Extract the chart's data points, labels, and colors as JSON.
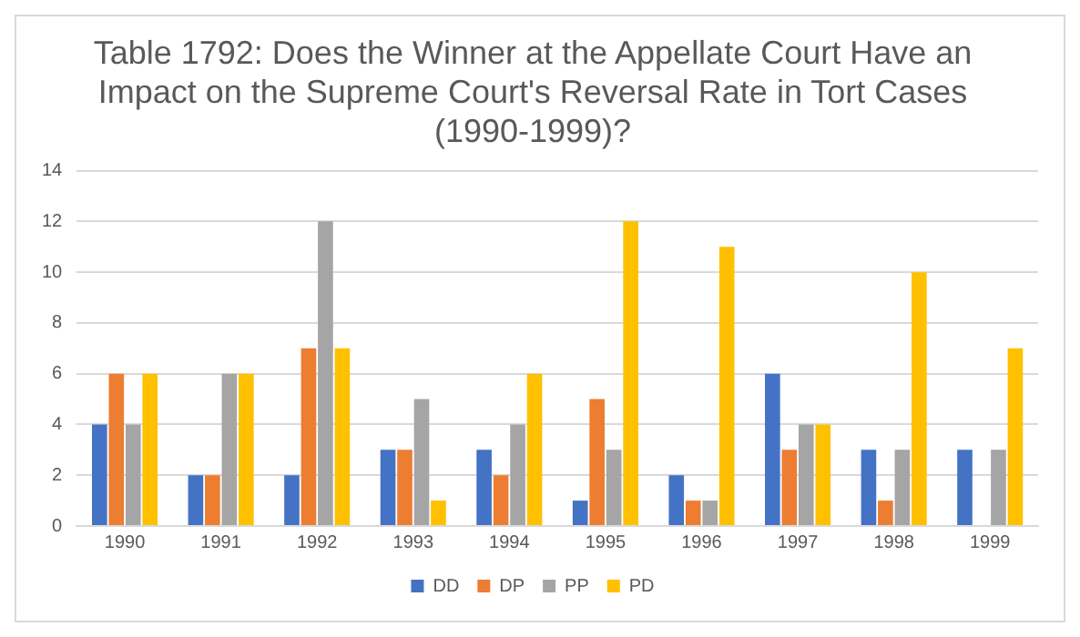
{
  "chart_data": {
    "type": "bar",
    "title": "Table 1792: Does the Winner at the Appellate Court Have an Impact on the Supreme Court's Reversal Rate in Tort Cases (1990-1999)?",
    "categories": [
      "1990",
      "1991",
      "1992",
      "1993",
      "1994",
      "1995",
      "1996",
      "1997",
      "1998",
      "1999"
    ],
    "series": [
      {
        "name": "DD",
        "color": "#4472c4",
        "values": [
          4,
          2,
          2,
          3,
          3,
          1,
          2,
          6,
          3,
          3
        ]
      },
      {
        "name": "DP",
        "color": "#ed7d31",
        "values": [
          6,
          2,
          7,
          3,
          2,
          5,
          1,
          3,
          1,
          0
        ]
      },
      {
        "name": "PP",
        "color": "#a5a5a5",
        "values": [
          4,
          6,
          12,
          5,
          4,
          3,
          1,
          4,
          3,
          3
        ]
      },
      {
        "name": "PD",
        "color": "#ffc000",
        "values": [
          6,
          6,
          7,
          1,
          6,
          12,
          11,
          4,
          10,
          7
        ]
      }
    ],
    "ylim": [
      0,
      14
    ],
    "yticks": [
      0,
      2,
      4,
      6,
      8,
      10,
      12,
      14
    ],
    "grid": "y",
    "legend": "bottom"
  }
}
